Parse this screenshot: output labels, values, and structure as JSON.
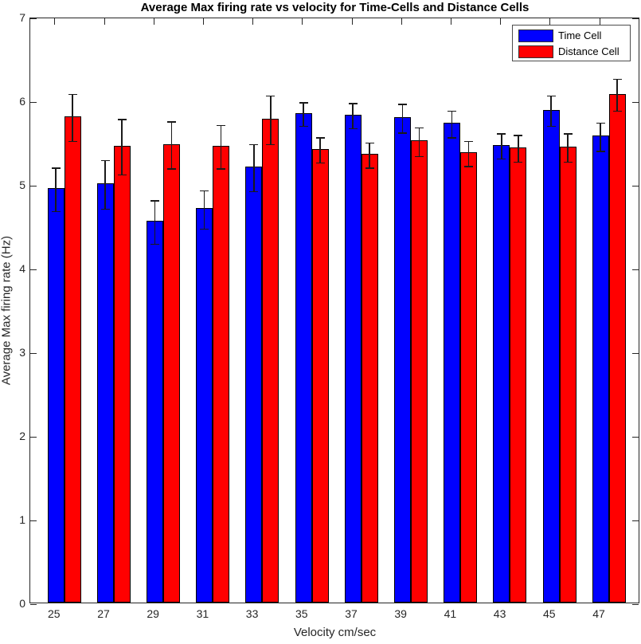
{
  "figure": {
    "background": "#ffffff",
    "axis_color": "#262626",
    "error_bar_color": "#1a1a1a"
  },
  "chart_data": {
    "type": "bar",
    "variant": "grouped-vertical-with-error-bars",
    "title": "Average Max firing rate vs velocity for Time-Cells and Distance Cells",
    "xlabel": "Velocity cm/sec",
    "ylabel": "Average Max firing rate (Hz)",
    "ylim": [
      0,
      7
    ],
    "yticks": [
      0,
      1,
      2,
      3,
      4,
      5,
      6,
      7
    ],
    "grid": false,
    "categories": [
      "25",
      "27",
      "29",
      "31",
      "33",
      "35",
      "37",
      "39",
      "41",
      "43",
      "45",
      "47"
    ],
    "series": [
      {
        "name": "Time Cell",
        "color": "#0000FF",
        "values": [
          4.95,
          5.01,
          4.56,
          4.71,
          5.21,
          5.85,
          5.83,
          5.8,
          5.73,
          5.47,
          5.89,
          5.58
        ],
        "errors": [
          0.26,
          0.29,
          0.26,
          0.23,
          0.28,
          0.14,
          0.15,
          0.17,
          0.16,
          0.15,
          0.18,
          0.17
        ]
      },
      {
        "name": "Distance Cell",
        "color": "#FF0000",
        "values": [
          5.81,
          5.46,
          5.48,
          5.46,
          5.78,
          5.42,
          5.36,
          5.52,
          5.38,
          5.44,
          5.45,
          6.08
        ],
        "errors": [
          0.28,
          0.33,
          0.28,
          0.26,
          0.29,
          0.15,
          0.15,
          0.17,
          0.15,
          0.16,
          0.17,
          0.19
        ]
      }
    ],
    "legend": {
      "position": "top-right",
      "entries": [
        "Time Cell",
        "Distance Cell"
      ]
    }
  }
}
